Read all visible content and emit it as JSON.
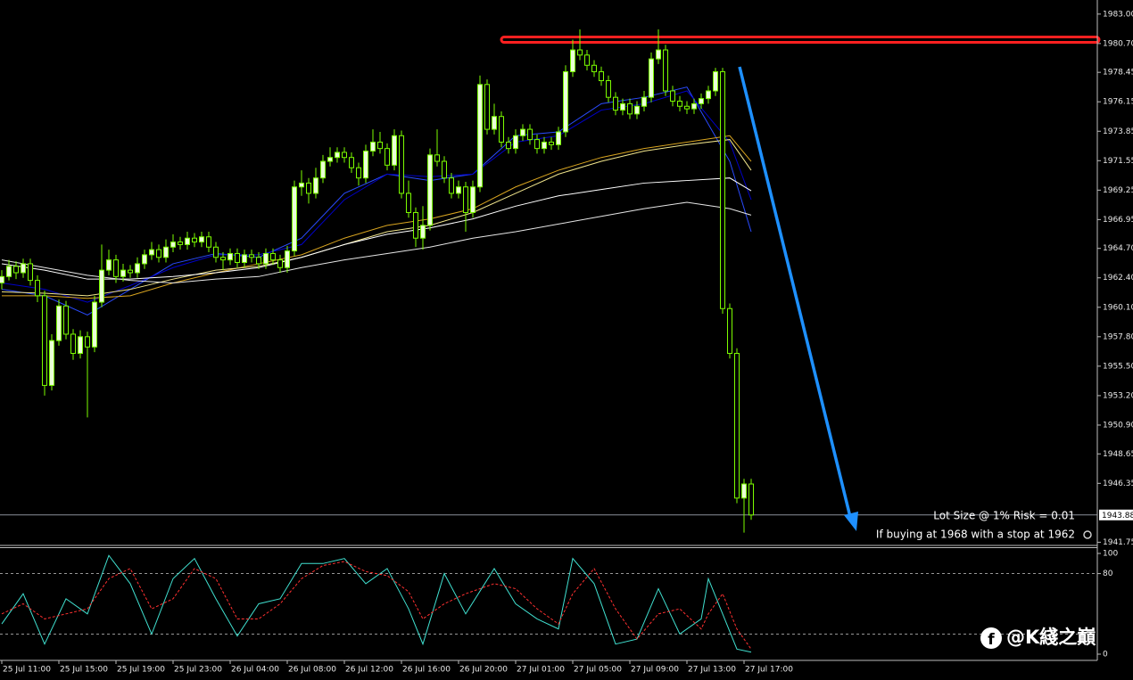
{
  "chart_data": {
    "type": "candlestick",
    "ohlc": [
      [
        1962.0,
        1963.0,
        1961.5,
        1962.5
      ],
      [
        1962.5,
        1963.8,
        1962.2,
        1963.3
      ],
      [
        1963.3,
        1963.7,
        1962.3,
        1962.8
      ],
      [
        1962.8,
        1963.9,
        1962.4,
        1963.5
      ],
      [
        1963.5,
        1963.9,
        1961.8,
        1962.2
      ],
      [
        1962.2,
        1962.6,
        1960.5,
        1961.0
      ],
      [
        1961.0,
        1961.4,
        1953.2,
        1954.0
      ],
      [
        1954.0,
        1958.0,
        1953.6,
        1957.5
      ],
      [
        1957.5,
        1960.7,
        1957.1,
        1960.2
      ],
      [
        1960.2,
        1960.6,
        1957.6,
        1958.0
      ],
      [
        1958.0,
        1958.4,
        1956.0,
        1956.5
      ],
      [
        1956.5,
        1958.3,
        1956.1,
        1957.8
      ],
      [
        1957.8,
        1958.2,
        1951.5,
        1957.0
      ],
      [
        1957.0,
        1961.0,
        1956.6,
        1960.5
      ],
      [
        1960.5,
        1965.0,
        1960.1,
        1963.0
      ],
      [
        1963.0,
        1964.6,
        1962.6,
        1963.8
      ],
      [
        1963.8,
        1964.2,
        1962.0,
        1962.5
      ],
      [
        1962.5,
        1963.5,
        1962.1,
        1963.0
      ],
      [
        1963.0,
        1963.4,
        1962.4,
        1962.8
      ],
      [
        1962.8,
        1964.0,
        1962.4,
        1963.5
      ],
      [
        1963.5,
        1964.6,
        1963.1,
        1964.2
      ],
      [
        1964.2,
        1965.2,
        1963.8,
        1964.6
      ],
      [
        1964.6,
        1965.0,
        1963.6,
        1964.0
      ],
      [
        1964.0,
        1965.4,
        1963.6,
        1964.8
      ],
      [
        1964.8,
        1965.8,
        1964.4,
        1965.2
      ],
      [
        1965.2,
        1965.6,
        1964.6,
        1965.0
      ],
      [
        1965.0,
        1966.0,
        1964.6,
        1965.5
      ],
      [
        1965.5,
        1965.9,
        1964.8,
        1965.2
      ],
      [
        1965.2,
        1966.0,
        1964.8,
        1965.6
      ],
      [
        1965.6,
        1966.0,
        1964.4,
        1964.8
      ],
      [
        1964.8,
        1965.2,
        1963.6,
        1964.0
      ],
      [
        1964.0,
        1964.4,
        1963.0,
        1963.8
      ],
      [
        1963.8,
        1964.7,
        1963.4,
        1964.3
      ],
      [
        1964.3,
        1964.7,
        1963.2,
        1963.6
      ],
      [
        1963.6,
        1964.6,
        1963.2,
        1964.2
      ],
      [
        1964.2,
        1964.6,
        1963.6,
        1964.0
      ],
      [
        1964.0,
        1964.4,
        1963.1,
        1963.5
      ],
      [
        1963.5,
        1964.7,
        1963.1,
        1964.3
      ],
      [
        1964.3,
        1964.7,
        1963.4,
        1963.8
      ],
      [
        1963.8,
        1964.2,
        1962.8,
        1963.2
      ],
      [
        1963.2,
        1964.9,
        1962.8,
        1964.5
      ],
      [
        1964.5,
        1970.0,
        1964.1,
        1969.5
      ],
      [
        1969.5,
        1970.8,
        1968.8,
        1969.8
      ],
      [
        1969.8,
        1970.2,
        1968.2,
        1969.0
      ],
      [
        1969.0,
        1971.0,
        1968.6,
        1970.2
      ],
      [
        1970.2,
        1972.0,
        1969.8,
        1971.5
      ],
      [
        1971.5,
        1972.6,
        1971.1,
        1971.8
      ],
      [
        1971.8,
        1972.6,
        1971.4,
        1972.2
      ],
      [
        1972.2,
        1972.6,
        1971.4,
        1971.8
      ],
      [
        1971.8,
        1972.2,
        1970.6,
        1971.0
      ],
      [
        1971.0,
        1971.4,
        1969.6,
        1970.2
      ],
      [
        1970.2,
        1972.8,
        1969.8,
        1972.3
      ],
      [
        1972.3,
        1974.0,
        1971.9,
        1973.0
      ],
      [
        1973.0,
        1973.8,
        1972.1,
        1972.5
      ],
      [
        1972.5,
        1972.9,
        1970.8,
        1971.2
      ],
      [
        1971.2,
        1974.0,
        1970.8,
        1973.5
      ],
      [
        1973.5,
        1973.9,
        1968.6,
        1969.0
      ],
      [
        1969.0,
        1970.0,
        1967.1,
        1967.5
      ],
      [
        1967.5,
        1967.9,
        1964.8,
        1965.5
      ],
      [
        1965.5,
        1968.0,
        1964.6,
        1966.5
      ],
      [
        1966.5,
        1972.5,
        1966.1,
        1972.0
      ],
      [
        1972.0,
        1974.0,
        1971.1,
        1971.5
      ],
      [
        1971.5,
        1971.9,
        1969.8,
        1970.2
      ],
      [
        1970.2,
        1970.6,
        1968.6,
        1969.0
      ],
      [
        1969.0,
        1970.0,
        1968.6,
        1969.5
      ],
      [
        1969.5,
        1969.9,
        1966.0,
        1967.5
      ],
      [
        1967.5,
        1970.0,
        1967.1,
        1969.5
      ],
      [
        1969.5,
        1978.2,
        1969.1,
        1977.5
      ],
      [
        1977.5,
        1977.9,
        1973.6,
        1974.0
      ],
      [
        1974.0,
        1976.0,
        1973.6,
        1975.0
      ],
      [
        1975.0,
        1975.4,
        1972.6,
        1973.0
      ],
      [
        1973.0,
        1973.4,
        1972.1,
        1972.5
      ],
      [
        1972.5,
        1974.0,
        1972.1,
        1973.5
      ],
      [
        1973.5,
        1974.4,
        1973.1,
        1974.0
      ],
      [
        1974.0,
        1974.4,
        1972.8,
        1973.2
      ],
      [
        1973.2,
        1973.6,
        1972.1,
        1972.5
      ],
      [
        1972.5,
        1973.4,
        1972.1,
        1973.0
      ],
      [
        1973.0,
        1973.4,
        1972.4,
        1972.8
      ],
      [
        1972.8,
        1974.2,
        1972.4,
        1973.8
      ],
      [
        1973.8,
        1979.0,
        1973.4,
        1978.5
      ],
      [
        1978.5,
        1981.0,
        1978.1,
        1980.2
      ],
      [
        1980.2,
        1981.8,
        1979.4,
        1979.8
      ],
      [
        1979.8,
        1980.2,
        1978.6,
        1979.0
      ],
      [
        1979.0,
        1979.4,
        1978.1,
        1978.5
      ],
      [
        1978.5,
        1978.9,
        1977.4,
        1977.8
      ],
      [
        1977.8,
        1978.2,
        1976.1,
        1976.5
      ],
      [
        1976.5,
        1976.9,
        1975.1,
        1975.5
      ],
      [
        1975.5,
        1976.4,
        1975.1,
        1976.0
      ],
      [
        1976.0,
        1976.4,
        1974.8,
        1975.2
      ],
      [
        1975.2,
        1976.2,
        1974.8,
        1975.8
      ],
      [
        1975.8,
        1977.0,
        1975.4,
        1976.5
      ],
      [
        1976.5,
        1980.0,
        1976.1,
        1979.5
      ],
      [
        1979.5,
        1981.8,
        1979.1,
        1980.2
      ],
      [
        1980.2,
        1980.6,
        1976.6,
        1977.0
      ],
      [
        1977.0,
        1977.4,
        1975.8,
        1976.2
      ],
      [
        1976.2,
        1976.6,
        1975.4,
        1975.8
      ],
      [
        1975.8,
        1976.2,
        1975.2,
        1975.6
      ],
      [
        1975.6,
        1976.4,
        1975.2,
        1976.0
      ],
      [
        1976.0,
        1976.8,
        1975.6,
        1976.4
      ],
      [
        1976.4,
        1977.4,
        1976.0,
        1977.0
      ],
      [
        1977.0,
        1978.8,
        1976.6,
        1978.5
      ],
      [
        1978.5,
        1978.8,
        1959.6,
        1960.0
      ],
      [
        1960.0,
        1960.4,
        1956.1,
        1956.5
      ],
      [
        1956.5,
        1956.9,
        1944.8,
        1945.2
      ],
      [
        1945.2,
        1946.7,
        1942.5,
        1946.3
      ],
      [
        1946.3,
        1946.7,
        1943.5,
        1943.88
      ]
    ],
    "up_color": "#eaffd8",
    "down_color": "#000000",
    "wick_color": "#7cfc00",
    "ylim": [
      1941.5,
      1984.1
    ],
    "yticks": [
      {
        "value": 1983.0,
        "label": "1983.00"
      },
      {
        "value": 1980.7,
        "label": "1980.70"
      },
      {
        "value": 1978.45,
        "label": "1978.45"
      },
      {
        "value": 1976.15,
        "label": "1976.15"
      },
      {
        "value": 1973.85,
        "label": "1973.85"
      },
      {
        "value": 1971.55,
        "label": "1971.55"
      },
      {
        "value": 1969.25,
        "label": "1969.25"
      },
      {
        "value": 1966.95,
        "label": "1966.95"
      },
      {
        "value": 1964.7,
        "label": "1964.70"
      },
      {
        "value": 1962.4,
        "label": "1962.40"
      },
      {
        "value": 1960.1,
        "label": "1960.10"
      },
      {
        "value": 1957.8,
        "label": "1957.80"
      },
      {
        "value": 1955.5,
        "label": "1955.50"
      },
      {
        "value": 1953.2,
        "label": "1953.20"
      },
      {
        "value": 1950.9,
        "label": "1950.90"
      },
      {
        "value": 1948.65,
        "label": "1948.65"
      },
      {
        "value": 1946.35,
        "label": "1946.35"
      },
      {
        "value": 1941.75,
        "label": "1941.75"
      }
    ],
    "x_labels": [
      "25 Jul 11:00",
      "25 Jul 15:00",
      "25 Jul 19:00",
      "25 Jul 23:00",
      "26 Jul 04:00",
      "26 Jul 08:00",
      "26 Jul 12:00",
      "26 Jul 16:00",
      "26 Jul 20:00",
      "27 Jul 01:00",
      "27 Jul 05:00",
      "27 Jul 09:00",
      "27 Jul 13:00",
      "27 Jul 17:00"
    ],
    "current_price": 1943.88,
    "resistance": {
      "value": 1981.0,
      "color": "#ff2020"
    },
    "moving_averages": {
      "x": [
        0,
        6,
        12,
        18,
        24,
        30,
        36,
        42,
        48,
        54,
        60,
        66,
        72,
        78,
        84,
        90,
        96,
        102,
        105
      ],
      "series": [
        {
          "color": "#2a4bff",
          "values": [
            1961.5,
            1961.0,
            1959.5,
            1961.5,
            1963.5,
            1964.3,
            1964.0,
            1965.5,
            1969.0,
            1970.5,
            1970.0,
            1970.5,
            1973.5,
            1973.8,
            1976.0,
            1976.5,
            1977.3,
            1971.5,
            1966.0
          ]
        },
        {
          "color": "#0000c8",
          "values": [
            1962.0,
            1961.5,
            1960.5,
            1961.8,
            1963.2,
            1964.2,
            1964.2,
            1965.0,
            1968.5,
            1970.5,
            1970.3,
            1970.5,
            1973.0,
            1973.5,
            1975.5,
            1976.0,
            1977.0,
            1973.0,
            1968.5
          ]
        },
        {
          "color": "#d9a520",
          "values": [
            1961.0,
            1961.0,
            1960.8,
            1961.0,
            1962.0,
            1962.8,
            1963.5,
            1964.2,
            1965.5,
            1966.5,
            1967.0,
            1967.8,
            1969.5,
            1970.8,
            1971.8,
            1972.5,
            1973.0,
            1973.5,
            1971.5
          ]
        },
        {
          "color": "#f2e68c",
          "values": [
            1961.3,
            1961.2,
            1961.0,
            1961.5,
            1962.3,
            1963.0,
            1963.3,
            1964.0,
            1965.0,
            1966.0,
            1966.5,
            1967.5,
            1969.0,
            1970.5,
            1971.5,
            1972.3,
            1972.8,
            1973.2,
            1970.8
          ]
        },
        {
          "color": "#ffffff",
          "values": [
            1963.5,
            1963.0,
            1962.3,
            1962.3,
            1962.5,
            1962.8,
            1963.2,
            1964.0,
            1965.0,
            1965.8,
            1966.3,
            1967.0,
            1968.0,
            1968.8,
            1969.3,
            1969.8,
            1970.0,
            1970.2,
            1969.2
          ]
        },
        {
          "color": "#e6e6e6",
          "values": [
            1963.8,
            1963.2,
            1962.6,
            1962.2,
            1962.0,
            1962.3,
            1962.5,
            1963.2,
            1963.8,
            1964.3,
            1964.8,
            1965.5,
            1966.0,
            1966.6,
            1967.2,
            1967.8,
            1968.3,
            1967.8,
            1967.3
          ]
        }
      ]
    },
    "stochastic": {
      "ylim": [
        0,
        100
      ],
      "yticks": [
        100,
        80,
        0
      ],
      "levels": [
        80,
        20
      ],
      "x": [
        0,
        3,
        6,
        9,
        12,
        15,
        18,
        21,
        24,
        27,
        30,
        33,
        36,
        39,
        42,
        45,
        48,
        51,
        54,
        57,
        59,
        62,
        65,
        69,
        72,
        75,
        78,
        80,
        83,
        86,
        89,
        92,
        95,
        98,
        99,
        101,
        103,
        105
      ],
      "series": [
        {
          "color": "#40e0d0",
          "dashed": false,
          "values": [
            30,
            60,
            10,
            55,
            40,
            98,
            70,
            20,
            75,
            95,
            55,
            18,
            50,
            55,
            90,
            90,
            95,
            70,
            85,
            45,
            10,
            80,
            40,
            85,
            50,
            35,
            25,
            95,
            70,
            10,
            15,
            65,
            20,
            35,
            75,
            40,
            5,
            2
          ]
        },
        {
          "color": "#ff3030",
          "dashed": true,
          "values": [
            40,
            50,
            35,
            40,
            45,
            75,
            85,
            45,
            55,
            85,
            75,
            35,
            35,
            50,
            75,
            88,
            92,
            82,
            78,
            62,
            35,
            50,
            60,
            70,
            65,
            45,
            30,
            60,
            85,
            45,
            15,
            40,
            45,
            25,
            40,
            60,
            25,
            5
          ]
        }
      ]
    },
    "annotations": [
      "Lot Size @ 1% Risk = 0.01",
      "If buying at 1968 with a stop at 1962"
    ],
    "watermark": "@K綫之巔"
  }
}
